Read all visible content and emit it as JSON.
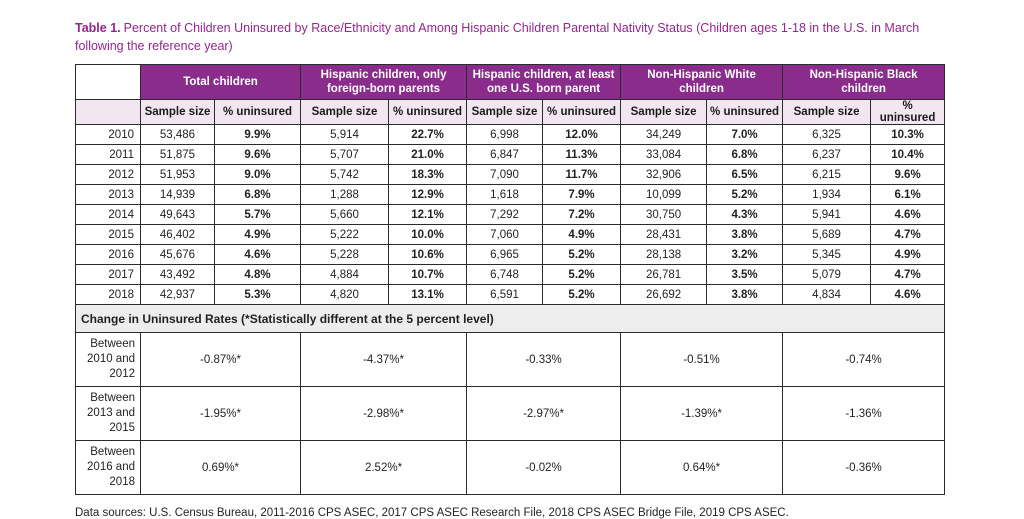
{
  "title": {
    "label": "Table 1.",
    "text": "Percent of Children Uninsured by Race/Ethnicity and Among Hispanic Children Parental Nativity Status (Children ages 1-18 in the U.S. in March following the reference year)"
  },
  "colors": {
    "header_purple": "#8A2C8B",
    "title_purple": "#93268F",
    "subheader_pink": "#F2E7F1",
    "section_gray": "#EDEDED"
  },
  "table": {
    "groups": [
      "Total children",
      "Hispanic children, only foreign-born parents",
      "Hispanic children, at least one U.S. born parent",
      "Non-Hispanic White children",
      "Non-Hispanic Black children"
    ],
    "subheaders": [
      "Sample size",
      "% uninsured"
    ],
    "rows": [
      {
        "year": "2010",
        "values": [
          "53,486",
          "9.9%",
          "5,914",
          "22.7%",
          "6,998",
          "12.0%",
          "34,249",
          "7.0%",
          "6,325",
          "10.3%"
        ]
      },
      {
        "year": "2011",
        "values": [
          "51,875",
          "9.6%",
          "5,707",
          "21.0%",
          "6,847",
          "11.3%",
          "33,084",
          "6.8%",
          "6,237",
          "10.4%"
        ]
      },
      {
        "year": "2012",
        "values": [
          "51,953",
          "9.0%",
          "5,742",
          "18.3%",
          "7,090",
          "11.7%",
          "32,906",
          "6.5%",
          "6,215",
          "9.6%"
        ]
      },
      {
        "year": "2013",
        "values": [
          "14,939",
          "6.8%",
          "1,288",
          "12.9%",
          "1,618",
          "7.9%",
          "10,099",
          "5.2%",
          "1,934",
          "6.1%"
        ]
      },
      {
        "year": "2014",
        "values": [
          "49,643",
          "5.7%",
          "5,660",
          "12.1%",
          "7,292",
          "7.2%",
          "30,750",
          "4.3%",
          "5,941",
          "4.6%"
        ]
      },
      {
        "year": "2015",
        "values": [
          "46,402",
          "4.9%",
          "5,222",
          "10.0%",
          "7,060",
          "4.9%",
          "28,431",
          "3.8%",
          "5,689",
          "4.7%"
        ]
      },
      {
        "year": "2016",
        "values": [
          "45,676",
          "4.6%",
          "5,228",
          "10.6%",
          "6,965",
          "5.2%",
          "28,138",
          "3.2%",
          "5,345",
          "4.9%"
        ]
      },
      {
        "year": "2017",
        "values": [
          "43,492",
          "4.8%",
          "4,884",
          "10.7%",
          "6,748",
          "5.2%",
          "26,781",
          "3.5%",
          "5,079",
          "4.7%"
        ]
      },
      {
        "year": "2018",
        "values": [
          "42,937",
          "5.3%",
          "4,820",
          "13.1%",
          "6,591",
          "5.2%",
          "26,692",
          "3.8%",
          "4,834",
          "4.6%"
        ]
      }
    ],
    "section_header": "Change in Uninsured Rates (*Statistically different at the 5 percent level)",
    "change_rows": [
      {
        "label": "Between 2010 and 2012",
        "values": [
          "-0.87%*",
          "-4.37%*",
          "-0.33%",
          "-0.51%",
          "-0.74%"
        ]
      },
      {
        "label": "Between 2013 and 2015",
        "values": [
          "-1.95%*",
          "-2.98%*",
          "-2.97%*",
          "-1.39%*",
          "-1.36%"
        ]
      },
      {
        "label": "Between 2016 and 2018",
        "values": [
          "0.69%*",
          "2.52%*",
          "-0.02%",
          "0.64%*",
          "-0.36%"
        ]
      }
    ]
  },
  "footer": "Data sources: U.S. Census Bureau, 2011-2016 CPS ASEC, 2017 CPS ASEC Research File, 2018 CPS ASEC Bridge File, 2019 CPS ASEC."
}
